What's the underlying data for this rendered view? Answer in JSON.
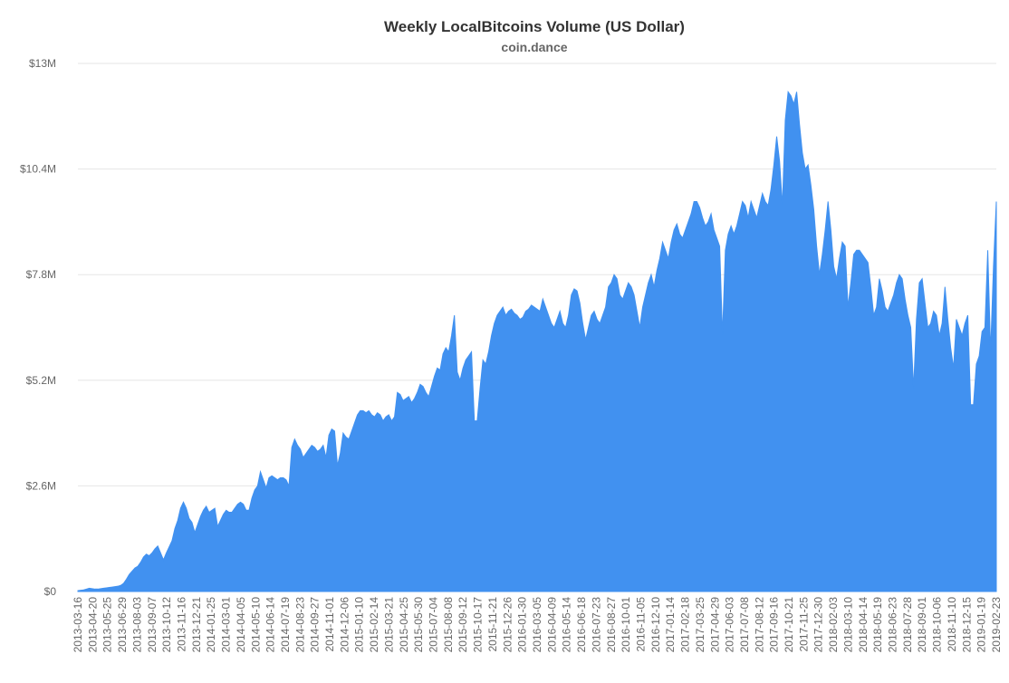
{
  "chart_data": {
    "type": "area",
    "title": "Weekly LocalBitcoins Volume (US Dollar)",
    "subtitle": "coin.dance",
    "xlabel": "",
    "ylabel": "",
    "ylim": [
      0,
      13000000
    ],
    "y_ticks": [
      "$0",
      "$2.6M",
      "$5.2M",
      "$7.8M",
      "$10.4M",
      "$13M"
    ],
    "x_tick_labels": [
      "2013-03-16",
      "2013-04-20",
      "2013-05-25",
      "2013-06-29",
      "2013-08-03",
      "2013-09-07",
      "2013-10-12",
      "2013-11-16",
      "2013-12-21",
      "2014-01-25",
      "2014-03-01",
      "2014-04-05",
      "2014-05-10",
      "2014-06-14",
      "2014-07-19",
      "2014-08-23",
      "2014-09-27",
      "2014-11-01",
      "2014-12-06",
      "2015-01-10",
      "2015-02-14",
      "2015-03-21",
      "2015-04-25",
      "2015-05-30",
      "2015-07-04",
      "2015-08-08",
      "2015-09-12",
      "2015-10-17",
      "2015-11-21",
      "2015-12-26",
      "2016-01-30",
      "2016-03-05",
      "2016-04-09",
      "2016-05-14",
      "2016-06-18",
      "2016-07-23",
      "2016-08-27",
      "2016-10-01",
      "2016-11-05",
      "2016-12-10",
      "2017-01-14",
      "2017-02-18",
      "2017-03-25",
      "2017-04-29",
      "2017-06-03",
      "2017-07-08",
      "2017-08-12",
      "2017-09-16",
      "2017-10-21",
      "2017-11-25",
      "2017-12-30",
      "2018-02-03",
      "2018-03-10",
      "2018-04-14",
      "2018-05-19",
      "2018-06-23",
      "2018-07-28",
      "2018-09-01",
      "2018-10-06",
      "2018-11-10",
      "2018-12-15",
      "2019-01-19",
      "2019-02-23"
    ],
    "grid": true,
    "legend": "none",
    "series_color": "#4191f0",
    "series": [
      {
        "values": [
          0.02,
          0.03,
          0.04,
          0.06,
          0.08,
          0.07,
          0.06,
          0.06,
          0.07,
          0.08,
          0.09,
          0.1,
          0.11,
          0.12,
          0.13,
          0.15,
          0.2,
          0.3,
          0.42,
          0.5,
          0.58,
          0.62,
          0.72,
          0.85,
          0.92,
          0.88,
          0.95,
          1.05,
          1.12,
          0.95,
          0.78,
          0.95,
          1.1,
          1.25,
          1.55,
          1.75,
          2.05,
          2.2,
          2.05,
          1.8,
          1.7,
          1.45,
          1.65,
          1.85,
          2.0,
          2.1,
          1.95,
          2.0,
          2.05,
          1.6,
          1.75,
          1.9,
          2.0,
          1.95,
          1.95,
          2.05,
          2.15,
          2.2,
          2.15,
          2.0,
          2.0,
          2.3,
          2.5,
          2.6,
          2.95,
          2.75,
          2.55,
          2.8,
          2.85,
          2.8,
          2.75,
          2.8,
          2.8,
          2.75,
          2.6,
          3.55,
          3.75,
          3.6,
          3.5,
          3.3,
          3.4,
          3.5,
          3.6,
          3.55,
          3.45,
          3.5,
          3.6,
          3.3,
          3.85,
          4.0,
          3.95,
          3.1,
          3.4,
          3.9,
          3.8,
          3.75,
          3.95,
          4.15,
          4.35,
          4.45,
          4.45,
          4.4,
          4.45,
          4.35,
          4.3,
          4.4,
          4.35,
          4.2,
          4.3,
          4.35,
          4.2,
          4.3,
          4.9,
          4.85,
          4.7,
          4.75,
          4.8,
          4.65,
          4.75,
          4.9,
          5.1,
          5.05,
          4.9,
          4.8,
          5.05,
          5.3,
          5.5,
          5.45,
          5.85,
          6.0,
          5.9,
          6.3,
          6.8,
          5.4,
          5.2,
          5.5,
          5.7,
          5.8,
          5.9,
          4.2,
          4.2,
          5.0,
          5.7,
          5.6,
          5.9,
          6.3,
          6.6,
          6.8,
          6.9,
          7.0,
          6.8,
          6.9,
          6.95,
          6.85,
          6.8,
          6.7,
          6.75,
          6.9,
          6.95,
          7.05,
          7.0,
          6.95,
          6.9,
          7.2,
          7.0,
          6.8,
          6.6,
          6.5,
          6.7,
          6.9,
          6.6,
          6.5,
          6.8,
          7.3,
          7.45,
          7.4,
          7.1,
          6.6,
          6.2,
          6.5,
          6.8,
          6.9,
          6.7,
          6.6,
          6.8,
          7.0,
          7.5,
          7.6,
          7.8,
          7.7,
          7.3,
          7.2,
          7.4,
          7.6,
          7.5,
          7.3,
          6.9,
          6.5,
          7.0,
          7.3,
          7.6,
          7.8,
          7.5,
          7.9,
          8.2,
          8.6,
          8.4,
          8.2,
          8.6,
          8.9,
          9.05,
          8.8,
          8.7,
          8.9,
          9.1,
          9.3,
          9.6,
          9.6,
          9.45,
          9.2,
          9.0,
          9.1,
          9.3,
          8.9,
          8.7,
          8.5,
          6.3,
          8.4,
          8.8,
          9.0,
          8.8,
          9.0,
          9.3,
          9.6,
          9.5,
          9.2,
          9.6,
          9.4,
          9.2,
          9.5,
          9.8,
          9.6,
          9.5,
          9.9,
          10.5,
          11.2,
          10.6,
          9.5,
          11.6,
          12.3,
          12.2,
          12.0,
          12.3,
          11.5,
          10.8,
          10.4,
          10.5,
          10.0,
          9.4,
          8.5,
          7.8,
          8.3,
          8.9,
          9.6,
          8.9,
          8.0,
          7.7,
          8.2,
          8.6,
          8.5,
          7.0,
          7.6,
          8.3,
          8.4,
          8.4,
          8.3,
          8.2,
          8.1,
          7.5,
          6.8,
          7.0,
          7.7,
          7.4,
          7.0,
          6.9,
          7.1,
          7.3,
          7.6,
          7.8,
          7.7,
          7.2,
          6.8,
          6.5,
          5.0,
          6.7,
          7.6,
          7.7,
          7.1,
          6.5,
          6.6,
          6.9,
          6.8,
          6.3,
          6.6,
          7.5,
          6.7,
          6.0,
          5.5,
          6.7,
          6.5,
          6.3,
          6.6,
          6.8,
          4.6,
          4.6,
          5.6,
          5.8,
          6.4,
          6.5,
          8.4,
          5.9,
          8.0,
          9.6
        ]
      }
    ]
  }
}
